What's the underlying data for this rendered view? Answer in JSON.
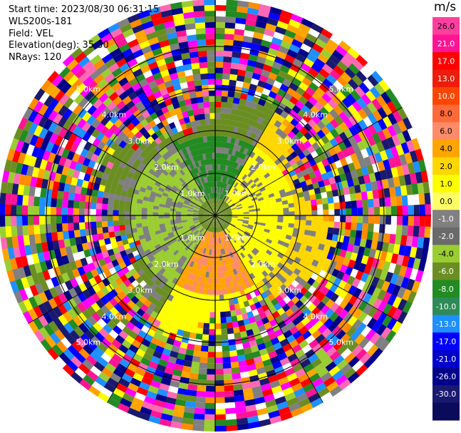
{
  "info": {
    "start_time": "Start time: 2023/08/30 06:31:15",
    "site": "WLS200s-181",
    "field": "Field: VEL",
    "elevation": "Elevation(deg): 35.30",
    "nrays": "NRays: 120"
  },
  "colorbar": {
    "title": "m/s",
    "ticks": [
      "26.0",
      "21.0",
      "17.0",
      "13.0",
      "10.0",
      "8.0",
      "6.0",
      "4.0",
      "2.0",
      "1.0",
      "0.0",
      "-1.0",
      "-2.0",
      "-4.0",
      "-6.0",
      "-8.0",
      "-10.0",
      "-13.0",
      "-17.0",
      "-21.0",
      "-26.0",
      "-30.0"
    ],
    "colors": [
      "#ff3fa0",
      "#ff1493",
      "#ff0000",
      "#ee1c0c",
      "#ff4500",
      "#ff6a3a",
      "#ff8c69",
      "#ffa500",
      "#ffd700",
      "#ffff00",
      "#ffff66",
      "#808080",
      "#6a6a6a",
      "#9acd32",
      "#6b8e23",
      "#228b22",
      "#2e8b57",
      "#1e90ff",
      "#0000ff",
      "#0000cd",
      "#00008b",
      "#191970",
      "#0b0b5c"
    ]
  },
  "rings": [
    "1.0km",
    "2.0km",
    "3.0km",
    "4.0km",
    "5.0km"
  ]
}
